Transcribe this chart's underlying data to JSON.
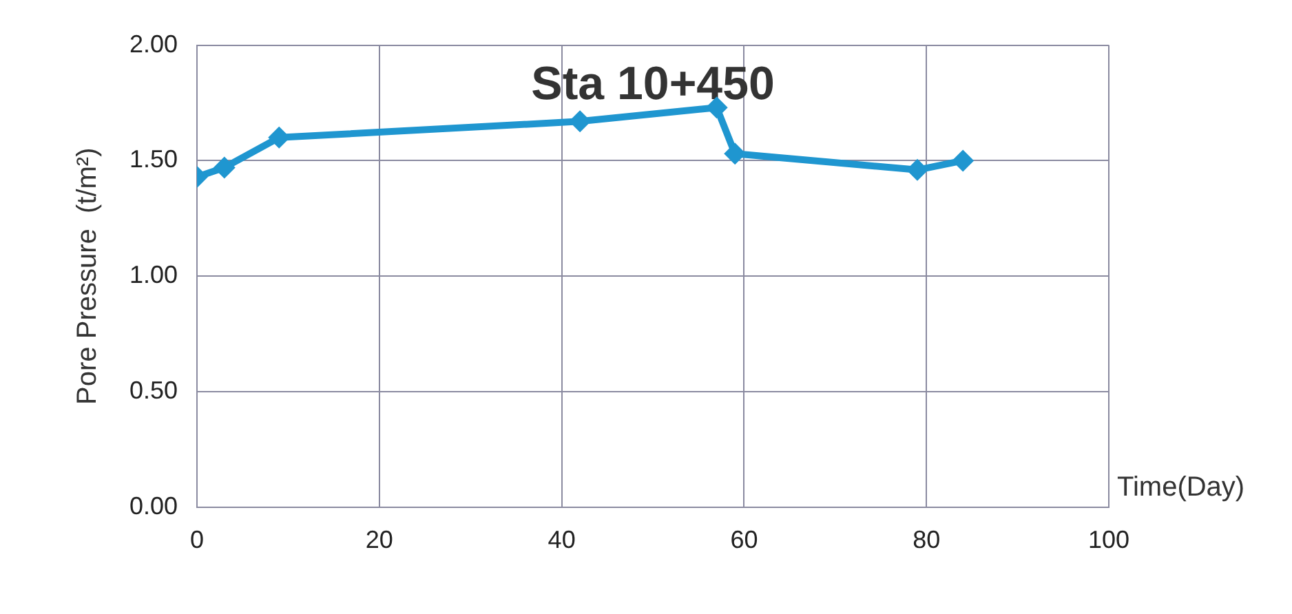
{
  "chart_data": {
    "type": "line",
    "title": "Sta 10+450",
    "xlabel": "Time(Day)",
    "ylabel": "Pore Pressure  (t/m²)",
    "x": [
      0,
      3,
      9,
      42,
      57,
      59,
      79,
      84
    ],
    "series": [
      {
        "color": "#1f96d0",
        "values": [
          1.43,
          1.47,
          1.6,
          1.67,
          1.73,
          1.53,
          1.46,
          1.5
        ]
      }
    ],
    "xlim": [
      0,
      100
    ],
    "xticks": [
      0,
      20,
      40,
      60,
      80,
      100
    ],
    "ylim": [
      0,
      2
    ],
    "yticks": [
      {
        "value": 0,
        "label": "0.00"
      },
      {
        "value": 0.5,
        "label": "0.50"
      },
      {
        "value": 1,
        "label": "1.00"
      },
      {
        "value": 1.5,
        "label": "1.50"
      },
      {
        "value": 2,
        "label": "2.00"
      }
    ],
    "grid": true,
    "legend": false,
    "marker": "diamond",
    "line_style": "solid"
  }
}
